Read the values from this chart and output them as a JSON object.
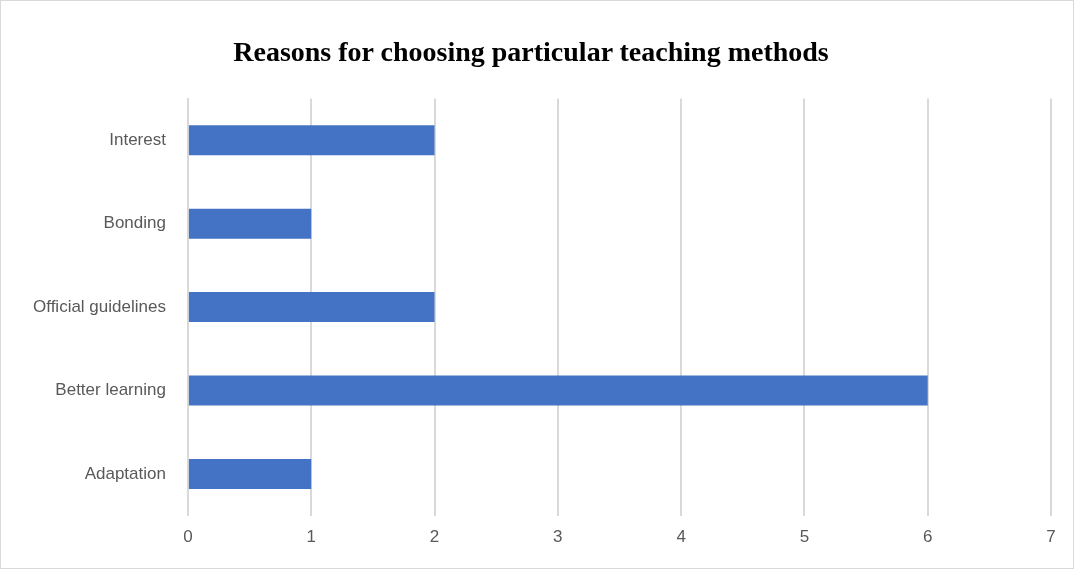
{
  "chart_data": {
    "type": "bar",
    "title": "Reasons for choosing particular teaching methods",
    "orientation": "horizontal",
    "categories": [
      "Interest",
      "Bonding",
      "Official guidelines",
      "Better learning",
      "Adaptation"
    ],
    "values": [
      2,
      1,
      2,
      6,
      1
    ],
    "color": "#4472c4",
    "xlim": [
      0,
      7
    ],
    "xticks": [
      0,
      1,
      2,
      3,
      4,
      5,
      6,
      7
    ],
    "grid": "x"
  }
}
